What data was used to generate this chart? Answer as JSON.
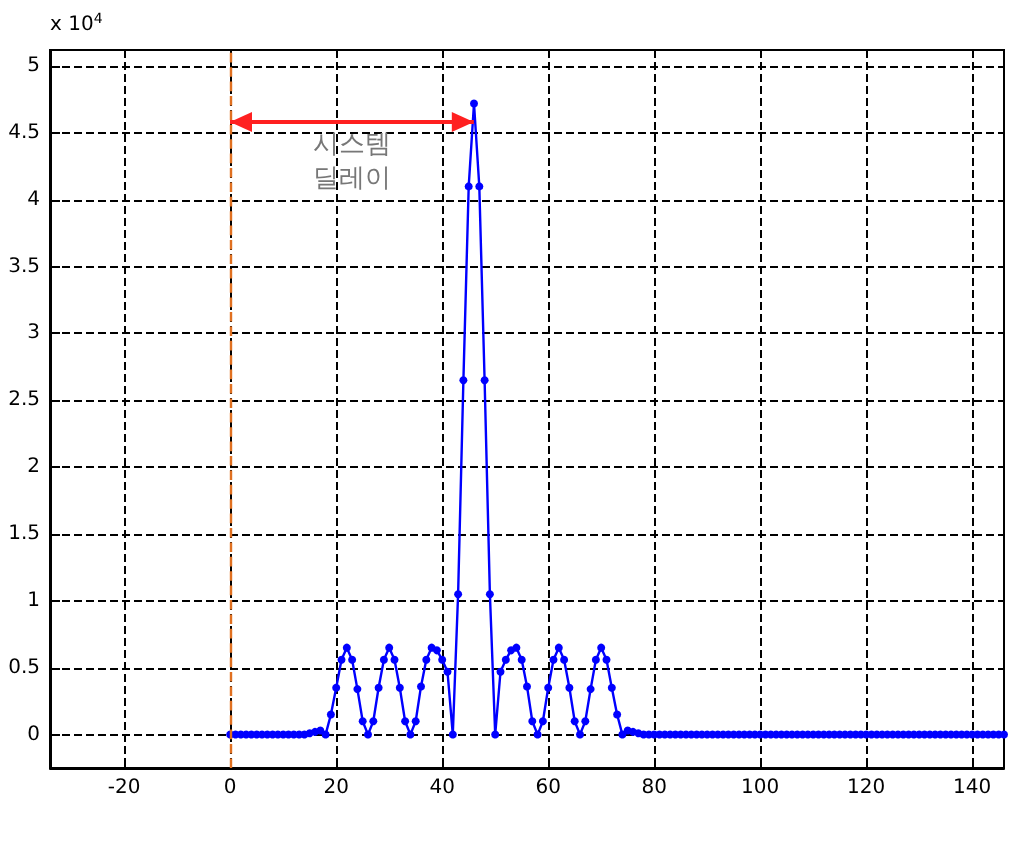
{
  "chart_data": {
    "type": "line",
    "x": [
      0,
      1,
      2,
      3,
      4,
      5,
      6,
      7,
      8,
      9,
      10,
      11,
      12,
      13,
      14,
      15,
      16,
      17,
      18,
      19,
      20,
      21,
      22,
      23,
      24,
      25,
      26,
      27,
      28,
      29,
      30,
      31,
      32,
      33,
      34,
      35,
      36,
      37,
      38,
      39,
      40,
      41,
      42,
      43,
      44,
      45,
      46,
      47,
      48,
      49,
      50,
      51,
      52,
      53,
      54,
      55,
      56,
      57,
      58,
      59,
      60,
      61,
      62,
      63,
      64,
      65,
      66,
      67,
      68,
      69,
      70,
      71,
      72,
      73,
      74,
      75,
      76,
      77,
      78,
      79,
      80,
      81,
      82,
      83,
      84,
      85,
      86,
      87,
      88,
      89,
      90,
      91,
      92,
      93,
      94,
      95,
      96,
      97,
      98,
      99,
      100,
      101,
      102,
      103,
      104,
      105,
      106,
      107,
      108,
      109,
      110,
      111,
      112,
      113,
      114,
      115,
      116,
      117,
      118,
      119,
      120,
      121,
      122,
      123,
      124,
      125,
      126,
      127,
      128,
      129,
      130,
      131,
      132,
      133,
      134,
      135,
      136,
      137,
      138,
      139,
      140,
      141,
      142,
      143,
      144,
      145,
      146
    ],
    "series": [
      {
        "color": "#0000ff",
        "values": [
          0,
          0,
          0,
          0,
          0,
          0,
          0,
          0,
          0,
          0,
          0,
          0,
          0,
          0,
          0,
          0.01,
          0.02,
          0.03,
          0,
          0.15,
          0.35,
          0.56,
          0.65,
          0.56,
          0.34,
          0.1,
          0,
          0.1,
          0.35,
          0.56,
          0.65,
          0.56,
          0.35,
          0.1,
          0,
          0.1,
          0.36,
          0.56,
          0.65,
          0.63,
          0.56,
          0.47,
          0,
          1.05,
          2.65,
          4.1,
          4.72,
          4.1,
          2.65,
          1.05,
          0,
          0.47,
          0.56,
          0.63,
          0.65,
          0.56,
          0.36,
          0.1,
          0,
          0.1,
          0.35,
          0.56,
          0.65,
          0.56,
          0.35,
          0.1,
          0,
          0.1,
          0.34,
          0.56,
          0.65,
          0.56,
          0.35,
          0.15,
          0,
          0.03,
          0.02,
          0.01,
          0,
          0,
          0,
          0,
          0,
          0,
          0,
          0,
          0,
          0,
          0,
          0,
          0,
          0,
          0,
          0,
          0,
          0,
          0,
          0,
          0,
          0,
          0,
          0,
          0,
          0,
          0,
          0,
          0,
          0,
          0,
          0,
          0,
          0,
          0,
          0,
          0,
          0,
          0,
          0,
          0,
          0,
          0,
          0,
          0,
          0,
          0,
          0,
          0,
          0,
          0,
          0,
          0,
          0,
          0,
          0,
          0,
          0,
          0,
          0,
          0,
          0,
          0,
          0,
          0,
          0,
          0,
          0,
          0
        ]
      }
    ],
    "xlim": [
      -34,
      146
    ],
    "xticks": [
      -20,
      0,
      20,
      40,
      60,
      80,
      100,
      120,
      140
    ],
    "ylim": [
      -0.25,
      5.12
    ],
    "yticks": [
      0,
      0.5,
      1,
      1.5,
      2,
      2.5,
      3,
      3.5,
      4,
      4.5,
      5
    ],
    "grid": true,
    "marker": "circle",
    "line_style": "solid",
    "ref_lines": [
      {
        "axis": "x",
        "value": 0,
        "color": "#e07020",
        "line_style": "dashed"
      }
    ],
    "annotations": [
      "x 10$^{4}$",
      "시스템\n딜레이"
    ]
  }
}
